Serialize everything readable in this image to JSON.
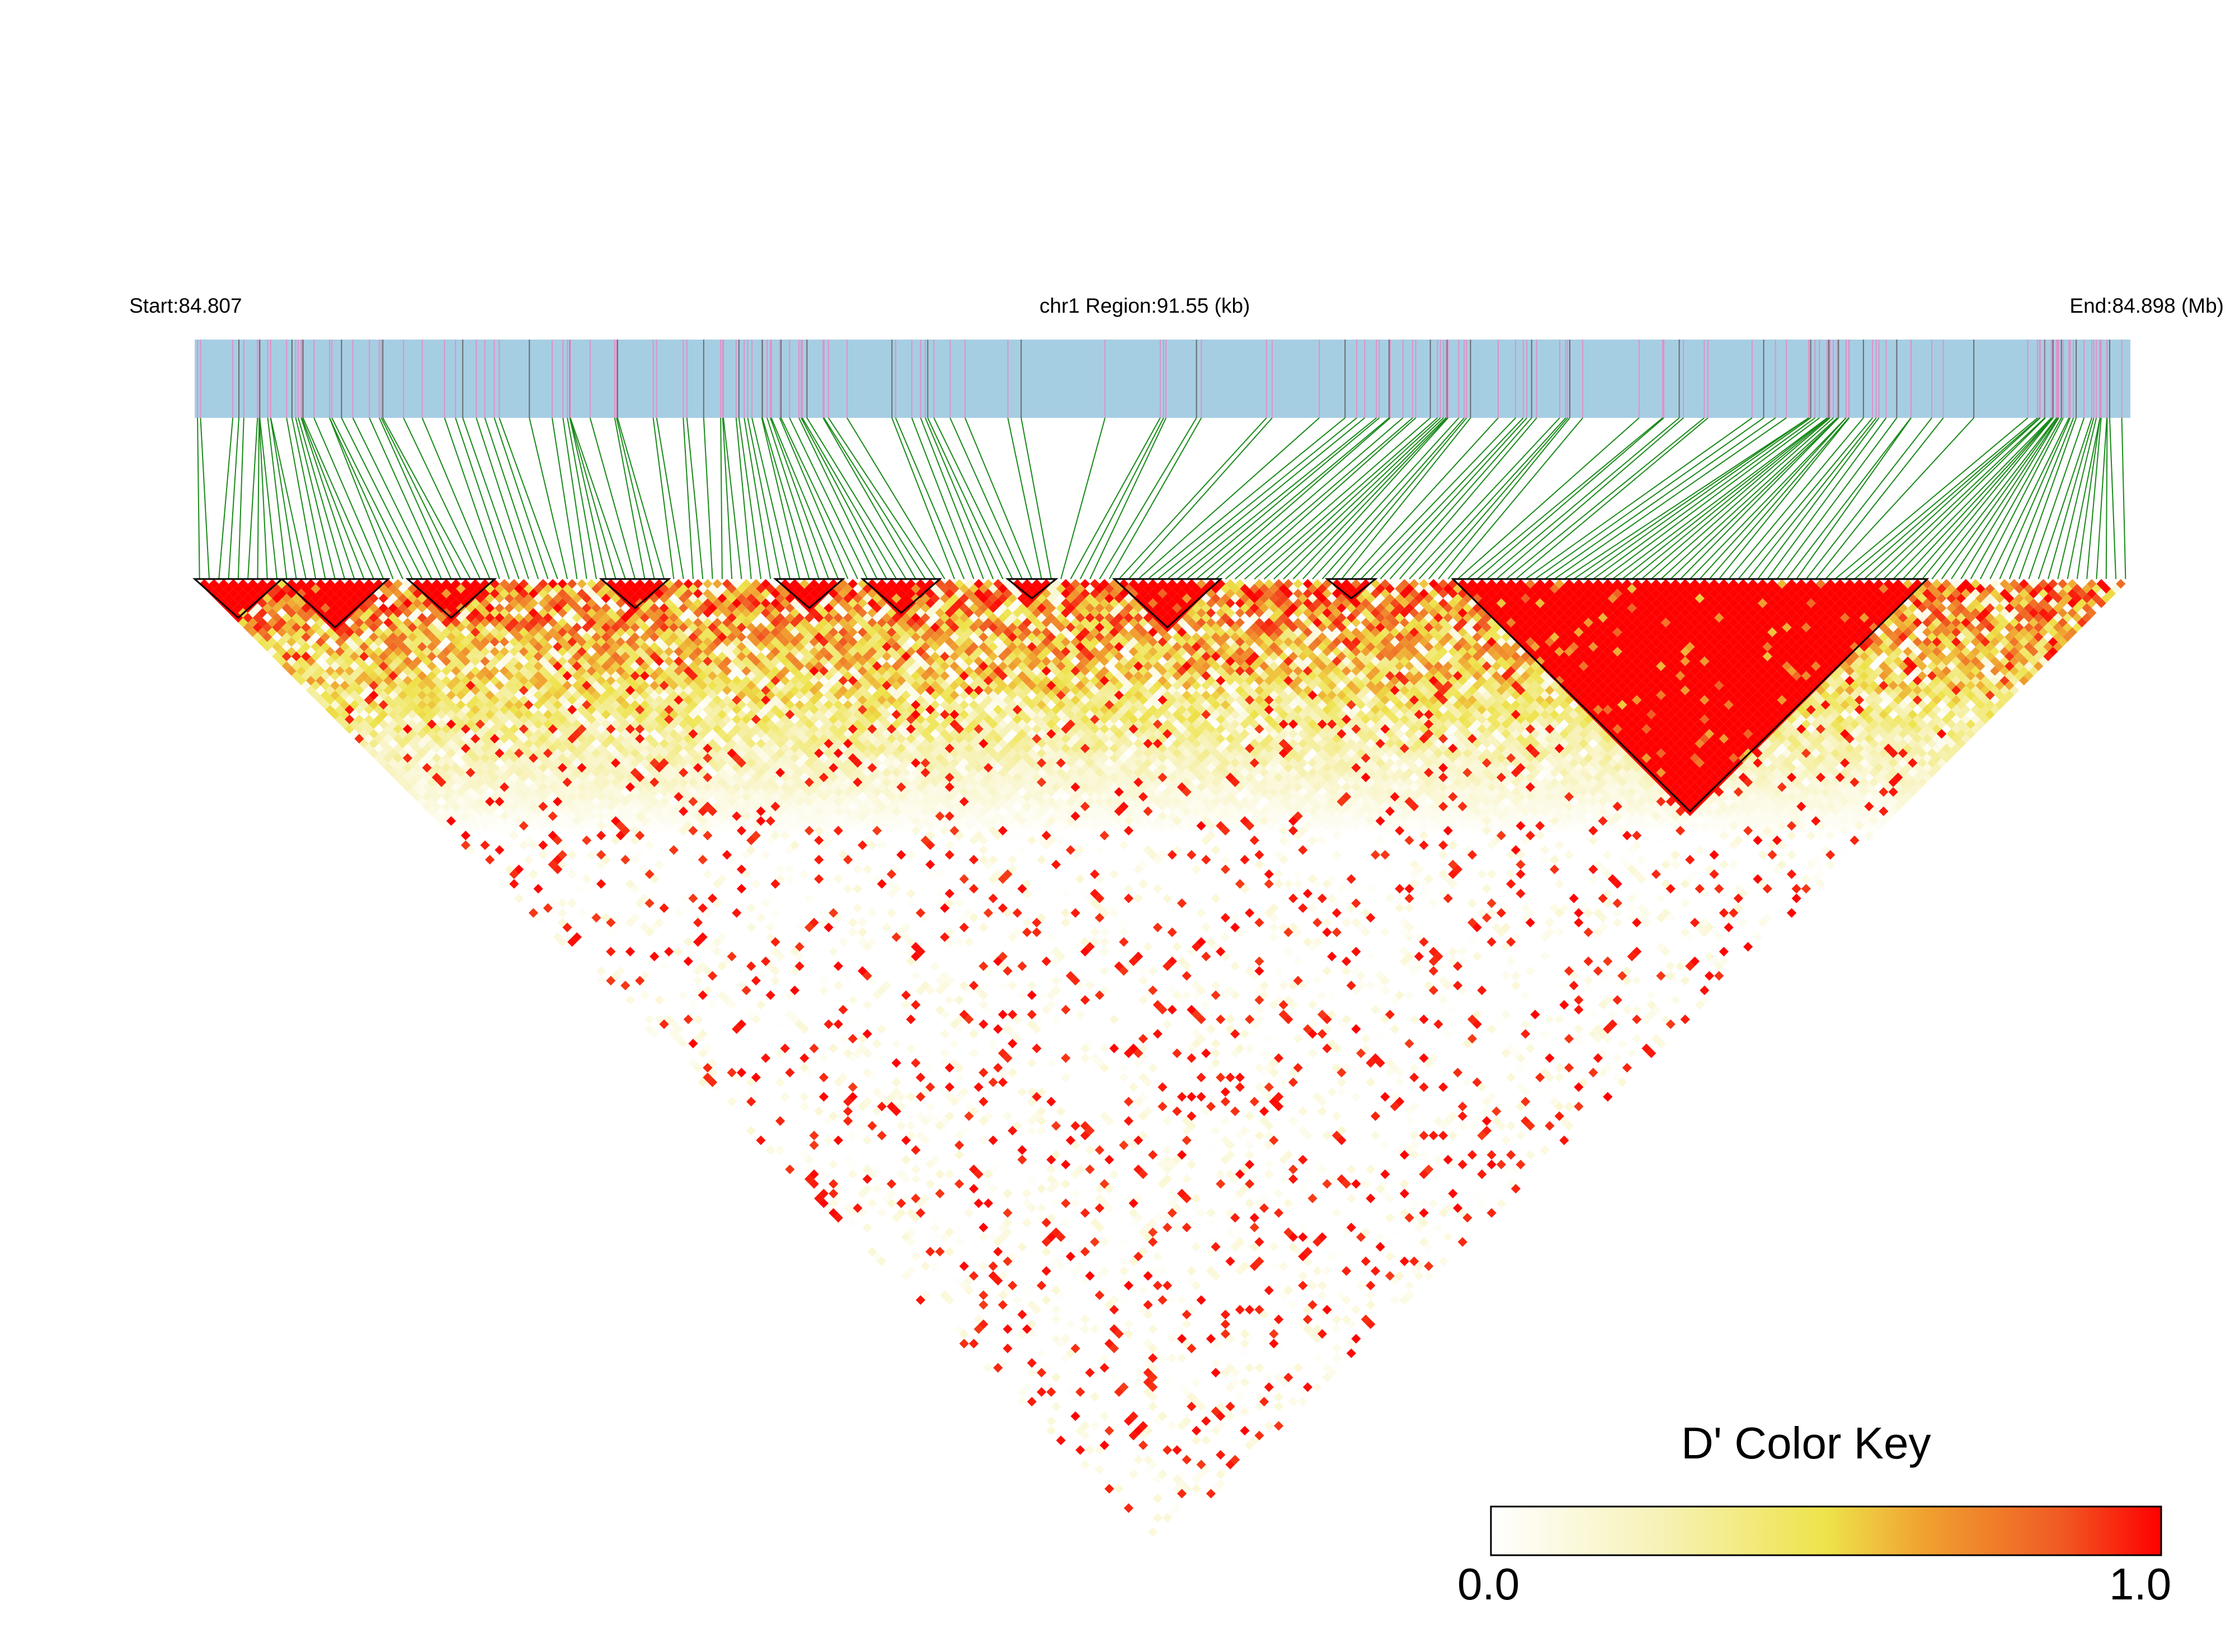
{
  "header": {
    "start": "Start:84.807",
    "region": "chr1 Region:91.55 (kb)",
    "end": "End:84.898 (Mb)"
  },
  "colors": {
    "track": "#a6cee3",
    "snp_tick": "#e091c8",
    "snp_tick_alt": "#6b6b6b",
    "connector": "#1a8a1a",
    "block_outline": "#000000",
    "gradient": [
      "#ffffff",
      "#f7f2b8",
      "#eee34a",
      "#f0a030",
      "#f05a23",
      "#ff0000"
    ]
  },
  "color_key": {
    "title": "D' Color Key",
    "min_label": "0.0",
    "max_label": "1.0"
  },
  "chart_data": {
    "type": "heatmap",
    "title": "chr1 Region:91.55 (kb)",
    "metric": "D'",
    "region_start_mb": 84.807,
    "region_end_mb": 84.898,
    "region_length_kb": 91.55,
    "snp_count": 200,
    "value_range": [
      0.0,
      1.0
    ],
    "ld_blocks_snp_index": [
      [
        0,
        8
      ],
      [
        9,
        19
      ],
      [
        22,
        30
      ],
      [
        42,
        48
      ],
      [
        60,
        66
      ],
      [
        69,
        76
      ],
      [
        84,
        88
      ],
      [
        95,
        105
      ],
      [
        117,
        121
      ],
      [
        130,
        178
      ]
    ],
    "legend": "bottom-right",
    "grid": false
  }
}
